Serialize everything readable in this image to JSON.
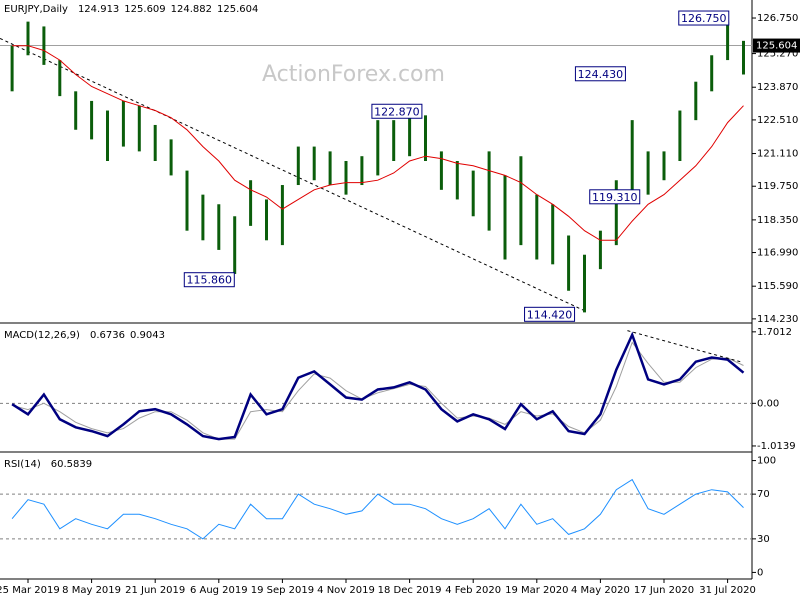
{
  "chart_data": [
    {
      "type": "hilo",
      "title": "EURJPY,Daily",
      "header_values": [
        124.913,
        125.609,
        124.882,
        125.604
      ],
      "watermark": "ActionForex.com",
      "categories": [
        null,
        "25 Mar 2019",
        null,
        null,
        null,
        "8 May 2019",
        null,
        null,
        null,
        "21 Jun 2019",
        null,
        null,
        null,
        "6 Aug 2019",
        null,
        null,
        null,
        "19 Sep 2019",
        null,
        null,
        null,
        "4 Nov 2019",
        null,
        null,
        null,
        "18 Dec 2019",
        null,
        null,
        null,
        "4 Feb 2020",
        null,
        null,
        null,
        "19 Mar 2020",
        null,
        null,
        null,
        "4 May 2020",
        null,
        null,
        null,
        "17 Jun 2020",
        null,
        null,
        null,
        "31 Jul 2020",
        null
      ],
      "high": [
        125.6,
        126.6,
        126.4,
        125.0,
        123.7,
        123.3,
        122.9,
        123.3,
        123.1,
        122.3,
        121.7,
        120.4,
        119.4,
        119.0,
        118.5,
        120.0,
        119.2,
        119.8,
        121.4,
        121.4,
        121.2,
        120.8,
        121.0,
        122.5,
        122.5,
        122.7,
        122.7,
        121.2,
        120.8,
        120.4,
        121.2,
        120.2,
        121.0,
        119.4,
        119.0,
        117.7,
        116.9,
        117.9,
        120.0,
        122.5,
        121.2,
        121.2,
        122.9,
        124.1,
        125.2,
        126.6,
        125.8
      ],
      "low": [
        123.7,
        125.2,
        124.8,
        123.5,
        122.1,
        121.7,
        120.8,
        121.4,
        121.2,
        120.8,
        120.2,
        117.9,
        117.5,
        117.1,
        116.1,
        118.1,
        117.5,
        117.3,
        119.8,
        120.0,
        119.8,
        119.4,
        119.8,
        120.2,
        120.8,
        121.0,
        120.8,
        119.6,
        119.2,
        118.5,
        117.9,
        116.7,
        117.3,
        116.7,
        116.5,
        115.4,
        114.5,
        116.3,
        117.3,
        119.4,
        119.4,
        120.0,
        120.8,
        122.5,
        123.7,
        125.0,
        124.4
      ],
      "bar_color": "#0b5d0b",
      "ma": {
        "color": "#e00000",
        "values": [
          125.6,
          125.6,
          125.4,
          125.0,
          124.4,
          123.9,
          123.6,
          123.3,
          123.1,
          122.9,
          122.6,
          122.1,
          121.4,
          120.8,
          120.0,
          119.6,
          119.3,
          118.8,
          119.2,
          119.6,
          119.8,
          119.9,
          119.9,
          120.0,
          120.3,
          120.8,
          121.0,
          120.9,
          120.7,
          120.6,
          120.4,
          120.2,
          119.9,
          119.4,
          119.0,
          118.5,
          117.9,
          117.5,
          117.5,
          118.3,
          119.0,
          119.4,
          120.0,
          120.6,
          121.4,
          122.4,
          123.1
        ]
      },
      "trendline": {
        "x": [
          -0.76,
          35.9
        ],
        "values": [
          125.9,
          114.6
        ]
      },
      "annotations": [
        {
          "value": 126.75,
          "label": "126.750",
          "x": 45.2
        },
        {
          "value": 124.43,
          "label": "124.430",
          "x": 38.7
        },
        {
          "value": 122.87,
          "label": "122.870",
          "x": 25.9
        },
        {
          "value": 119.31,
          "label": "119.310",
          "x": 39.6
        },
        {
          "value": 115.86,
          "label": "115.860",
          "x": 14.1
        },
        {
          "value": 114.42,
          "label": "114.420",
          "x": 35.5
        }
      ],
      "last_price": {
        "value": 125.604,
        "label": "125.604"
      },
      "ylim": [
        114.1,
        127.5
      ],
      "yticks": [
        {
          "value": 126.75,
          "label": "126.750"
        },
        {
          "value": 125.27,
          "label": "125.270"
        },
        {
          "value": 123.87,
          "label": "123.870"
        },
        {
          "value": 122.51,
          "label": "122.510"
        },
        {
          "value": 121.11,
          "label": "121.110"
        },
        {
          "value": 119.75,
          "label": "119.750"
        },
        {
          "value": 118.35,
          "label": "118.350"
        },
        {
          "value": 116.99,
          "label": "116.990"
        },
        {
          "value": 115.59,
          "label": "115.590"
        },
        {
          "value": 114.23,
          "label": "114.230"
        }
      ]
    },
    {
      "type": "line",
      "title": "MACD(12,26,9)",
      "header_values": [
        0.6736,
        0.9043
      ],
      "series": [
        {
          "color": "#000080",
          "width": 2.5,
          "values": [
            -0.02,
            -0.26,
            0.21,
            -0.38,
            -0.57,
            -0.66,
            -0.78,
            -0.5,
            -0.19,
            -0.14,
            -0.26,
            -0.5,
            -0.78,
            -0.85,
            -0.8,
            0.21,
            -0.26,
            -0.14,
            0.61,
            0.76,
            0.45,
            0.14,
            0.09,
            0.33,
            0.38,
            0.5,
            0.33,
            -0.14,
            -0.43,
            -0.26,
            -0.38,
            -0.61,
            -0.02,
            -0.38,
            -0.19,
            -0.66,
            -0.73,
            -0.26,
            0.8,
            1.63,
            0.57,
            0.45,
            0.57,
            0.99,
            1.09,
            1.04,
            0.73
          ]
        },
        {
          "color": "#a0a0a0",
          "width": 1,
          "values": [
            -0.05,
            -0.15,
            0.0,
            -0.2,
            -0.45,
            -0.6,
            -0.7,
            -0.6,
            -0.35,
            -0.2,
            -0.2,
            -0.4,
            -0.7,
            -0.85,
            -0.85,
            -0.2,
            -0.15,
            -0.2,
            0.3,
            0.7,
            0.6,
            0.3,
            0.1,
            0.25,
            0.35,
            0.45,
            0.4,
            0.0,
            -0.35,
            -0.3,
            -0.35,
            -0.5,
            -0.2,
            -0.3,
            -0.25,
            -0.55,
            -0.7,
            -0.4,
            0.4,
            1.45,
            0.95,
            0.5,
            0.5,
            0.85,
            1.05,
            1.08,
            0.9
          ]
        }
      ],
      "trendline": {
        "x": [
          38.7,
          45.8
        ],
        "values": [
          1.73,
          0.99
        ]
      },
      "levels": [
        0
      ],
      "ylim": [
        -1.11,
        1.84
      ],
      "yticks": [
        1.7012,
        {
          "value": 0,
          "label": "0.00"
        },
        -1.0139
      ]
    },
    {
      "type": "line",
      "title": "RSI(14)",
      "header_values": [
        60.5839
      ],
      "series": [
        {
          "color": "#1e90ff",
          "width": 1,
          "values": [
            48,
            65,
            61,
            39,
            48,
            43,
            39,
            52,
            52,
            48,
            43,
            39,
            30,
            43,
            39,
            61,
            48,
            48,
            70,
            61,
            57,
            52,
            55,
            70,
            61,
            61,
            57,
            48,
            43,
            48,
            57,
            39,
            61,
            43,
            48,
            34,
            39,
            52,
            74,
            83,
            57,
            52,
            61,
            70,
            74,
            72,
            58
          ]
        }
      ],
      "levels": [
        70,
        30
      ],
      "ylim": [
        -5,
        105
      ],
      "yticks": [
        100,
        70,
        30,
        0
      ]
    }
  ]
}
